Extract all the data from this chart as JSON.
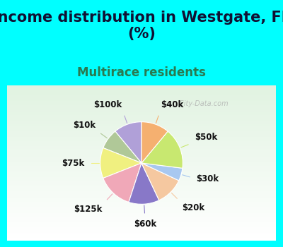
{
  "title": "Income distribution in Westgate, FL\n(%)",
  "subtitle": "Multirace residents",
  "bg_cyan": "#00FFFF",
  "watermark": "City-Data.com",
  "labels": [
    "$100k",
    "$10k",
    "$75k",
    "$125k",
    "$60k",
    "$20k",
    "$30k",
    "$50k",
    "$40k"
  ],
  "sizes": [
    11,
    8,
    12,
    14,
    12,
    11,
    5,
    16,
    11
  ],
  "colors": [
    "#b0a0d8",
    "#b0c898",
    "#f0f080",
    "#f0a8b8",
    "#8878c8",
    "#f5c8a0",
    "#a8c8f0",
    "#c8e870",
    "#f5b070"
  ],
  "startangle": 90,
  "title_fontsize": 15,
  "subtitle_fontsize": 12,
  "label_fontsize": 8.5,
  "title_color": "#111133",
  "subtitle_color": "#2a7a50"
}
